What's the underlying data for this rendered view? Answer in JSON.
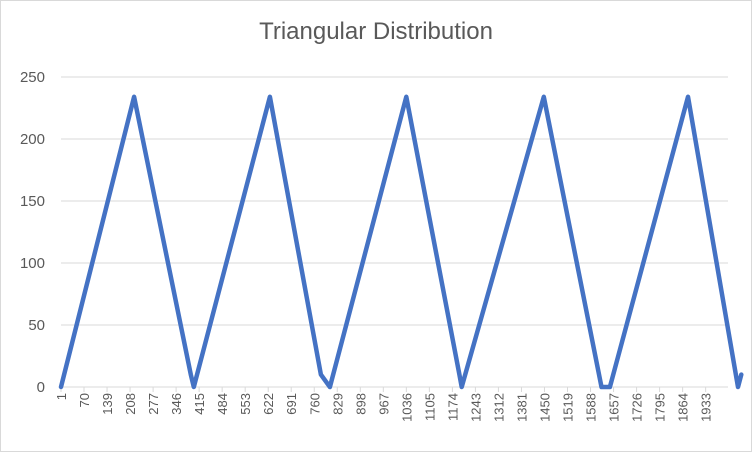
{
  "chart_data": {
    "type": "line",
    "title": "Triangular Distribution",
    "xlabel": "",
    "ylabel": "",
    "ylim": [
      0,
      250
    ],
    "y_ticks": [
      0,
      50,
      100,
      150,
      200,
      250
    ],
    "x_range": [
      1,
      2000
    ],
    "x_ticks": [
      "1",
      "70",
      "139",
      "208",
      "277",
      "346",
      "415",
      "484",
      "553",
      "622",
      "691",
      "760",
      "829",
      "898",
      "967",
      "1036",
      "1105",
      "1174",
      "1243",
      "1312",
      "1381",
      "1450",
      "1519",
      "1588",
      "1657",
      "1726",
      "1795",
      "1864",
      "1933"
    ],
    "grid": true,
    "legend": "none",
    "color": "#4472c4",
    "series": [
      {
        "x": [
          1,
          220,
          390,
          399,
          627,
          780,
          807,
          1036,
          1195,
          1202,
          1448,
          1621,
          1646,
          1880,
          2030,
          2040
        ],
        "values": [
          0,
          234,
          10,
          0,
          234,
          10,
          0,
          234,
          10,
          0,
          234,
          0,
          0,
          234,
          0,
          10
        ]
      }
    ]
  }
}
